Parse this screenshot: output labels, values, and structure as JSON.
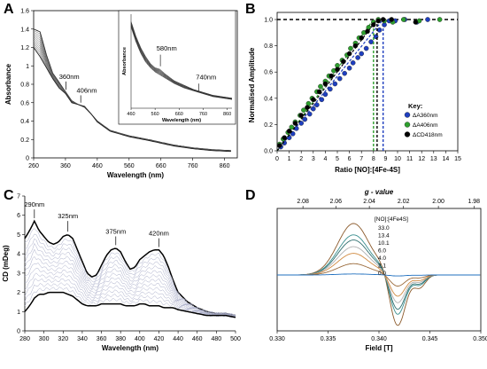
{
  "panels": {
    "A": {
      "letter": "A",
      "chart_data": {
        "type": "line",
        "title": "",
        "xlabel": "Wavelength (nm)",
        "ylabel": "Absorbance",
        "xlim": [
          260,
          900
        ],
        "ylim": [
          0,
          1.6
        ],
        "xticks": [
          "260",
          "360",
          "460",
          "560",
          "660",
          "760",
          "860"
        ],
        "yticks": [
          "0",
          "0.2",
          "0.4",
          "0.6",
          "0.8",
          "1",
          "1.2",
          "1.4",
          "1.6"
        ],
        "annotations": [
          "360nm",
          "406nm"
        ],
        "series_first": {
          "x": [
            260,
            280,
            300,
            320,
            340,
            360,
            380,
            400,
            420,
            440,
            460,
            500,
            560,
            620,
            660,
            700,
            760,
            820,
            880
          ],
          "y": [
            1.4,
            1.37,
            1.12,
            0.92,
            0.82,
            0.72,
            0.62,
            0.58,
            0.55,
            0.48,
            0.4,
            0.3,
            0.24,
            0.2,
            0.17,
            0.14,
            0.11,
            0.09,
            0.08
          ]
        },
        "series_last": {
          "x": [
            260,
            280,
            300,
            320,
            340,
            360,
            380,
            400,
            420,
            440,
            460,
            500,
            560,
            620,
            660,
            700,
            760,
            820,
            880
          ],
          "y": [
            1.2,
            1.1,
            0.98,
            0.86,
            0.76,
            0.7,
            0.6,
            0.58,
            0.56,
            0.48,
            0.39,
            0.29,
            0.23,
            0.19,
            0.16,
            0.13,
            0.1,
            0.08,
            0.07
          ]
        },
        "trace_count": 13
      },
      "inset": {
        "chart_data": {
          "type": "line",
          "xlabel": "Wavelength (nm)",
          "ylabel": "Absorbance",
          "xlim": [
            460,
            880
          ],
          "xticks": [
            "460",
            "560",
            "660",
            "760",
            "860"
          ],
          "annotations": [
            "580nm",
            "740nm"
          ],
          "series_first": {
            "x": [
              460,
              480,
              500,
              520,
              540,
              560,
              580,
              600,
              640,
              680,
              720,
              760,
              800,
              840,
              880
            ],
            "y": [
              0.6,
              0.5,
              0.42,
              0.36,
              0.31,
              0.28,
              0.27,
              0.24,
              0.19,
              0.16,
              0.13,
              0.11,
              0.09,
              0.08,
              0.07
            ]
          },
          "series_last": {
            "x": [
              460,
              480,
              500,
              520,
              540,
              560,
              580,
              600,
              640,
              680,
              720,
              760,
              800,
              840,
              880
            ],
            "y": [
              0.56,
              0.46,
              0.38,
              0.32,
              0.28,
              0.25,
              0.23,
              0.21,
              0.17,
              0.14,
              0.12,
              0.1,
              0.08,
              0.07,
              0.06
            ]
          }
        }
      }
    },
    "B": {
      "letter": "B",
      "chart_data": {
        "type": "scatter",
        "xlabel": "Ratio [NO]:[4Fe-4S]",
        "ylabel": "Normalised Amplitude",
        "xlim": [
          0,
          15
        ],
        "ylim": [
          0,
          1.0
        ],
        "xticks": [
          "0",
          "1",
          "2",
          "3",
          "4",
          "5",
          "6",
          "7",
          "8",
          "9",
          "10",
          "11",
          "12",
          "13",
          "14",
          "15"
        ],
        "yticks": [
          "0.0",
          "0.2",
          "0.4",
          "0.6",
          "0.8",
          "1.0"
        ],
        "legend_title": "Key:",
        "legend_position": "right",
        "series": [
          {
            "name": "ΔA360nm",
            "color": "#1f3fbf",
            "endpoint": 8.8,
            "x": [
              0.3,
              0.6,
              1.0,
              1.3,
              1.6,
              2.0,
              2.3,
              2.7,
              3.0,
              3.3,
              3.7,
              4.0,
              4.4,
              4.8,
              5.2,
              5.6,
              6.0,
              6.3,
              6.7,
              7.0,
              7.4,
              7.8,
              8.2,
              8.5,
              8.9,
              9.3,
              9.8,
              10.6,
              11.6,
              12.5
            ],
            "y": [
              0.03,
              0.06,
              0.1,
              0.13,
              0.17,
              0.21,
              0.24,
              0.28,
              0.32,
              0.35,
              0.39,
              0.43,
              0.47,
              0.51,
              0.55,
              0.59,
              0.63,
              0.67,
              0.71,
              0.74,
              0.78,
              0.83,
              0.87,
              0.92,
              0.96,
              0.99,
              0.99,
              1.0,
              0.98,
              1.0
            ]
          },
          {
            "name": "ΔA406nm",
            "color": "#2ea02e",
            "endpoint": 8.0,
            "x": [
              0.2,
              0.5,
              0.9,
              1.2,
              1.5,
              1.9,
              2.2,
              2.6,
              2.9,
              3.3,
              3.6,
              4.0,
              4.3,
              4.7,
              5.0,
              5.4,
              5.8,
              6.1,
              6.5,
              6.8,
              7.2,
              7.6,
              8.0,
              8.4,
              8.9,
              9.6,
              10.5,
              11.8,
              13.5
            ],
            "y": [
              0.05,
              0.09,
              0.14,
              0.18,
              0.22,
              0.27,
              0.31,
              0.36,
              0.4,
              0.45,
              0.49,
              0.53,
              0.57,
              0.61,
              0.65,
              0.69,
              0.73,
              0.78,
              0.82,
              0.86,
              0.9,
              0.94,
              0.98,
              1.0,
              0.99,
              0.98,
              1.0,
              0.99,
              1.0
            ]
          },
          {
            "name": "ΔCD418nm",
            "color": "#000000",
            "endpoint": 8.3,
            "x": [
              0.2,
              0.6,
              1.0,
              1.5,
              2.0,
              2.5,
              3.0,
              3.5,
              4.0,
              4.5,
              5.0,
              5.5,
              6.0,
              6.5,
              7.0,
              7.5,
              8.0,
              8.4,
              8.8,
              9.5,
              11.5
            ],
            "y": [
              0.04,
              0.1,
              0.15,
              0.21,
              0.27,
              0.33,
              0.39,
              0.45,
              0.51,
              0.57,
              0.62,
              0.68,
              0.74,
              0.8,
              0.86,
              0.91,
              0.96,
              0.99,
              1.0,
              1.0,
              0.98
            ]
          }
        ]
      }
    },
    "C": {
      "letter": "C",
      "chart_data": {
        "type": "line",
        "xlabel": "Wavelength (nm)",
        "ylabel": "CD (mDeg)",
        "xlim": [
          280,
          500
        ],
        "ylim": [
          0,
          7
        ],
        "xticks": [
          "280",
          "300",
          "320",
          "340",
          "360",
          "380",
          "400",
          "420",
          "440",
          "460",
          "480",
          "500"
        ],
        "yticks": [
          "0",
          "1",
          "2",
          "3",
          "4",
          "5",
          "6",
          "7"
        ],
        "annotations": [
          "290nm",
          "325nm",
          "375nm",
          "420nm"
        ],
        "series_first": {
          "x": [
            280,
            285,
            290,
            295,
            300,
            305,
            310,
            315,
            320,
            325,
            330,
            335,
            340,
            345,
            350,
            355,
            360,
            365,
            370,
            375,
            380,
            385,
            390,
            395,
            400,
            405,
            410,
            415,
            420,
            425,
            430,
            435,
            440,
            450,
            460,
            470,
            480,
            490,
            500
          ],
          "y": [
            4.8,
            5.2,
            5.7,
            5.2,
            4.9,
            4.6,
            4.5,
            4.6,
            4.9,
            5.0,
            4.8,
            4.2,
            3.6,
            3.0,
            2.8,
            2.9,
            3.4,
            3.9,
            4.2,
            4.3,
            4.1,
            3.6,
            3.2,
            3.3,
            3.7,
            3.9,
            4.1,
            4.2,
            4.2,
            3.9,
            3.3,
            2.6,
            2.0,
            1.5,
            1.2,
            1.0,
            0.9,
            0.9,
            0.8
          ]
        },
        "series_last": {
          "x": [
            280,
            285,
            290,
            295,
            300,
            305,
            310,
            315,
            320,
            325,
            330,
            335,
            340,
            345,
            350,
            355,
            360,
            365,
            370,
            375,
            380,
            385,
            390,
            395,
            400,
            405,
            410,
            415,
            420,
            425,
            430,
            435,
            440,
            450,
            460,
            470,
            480,
            490,
            500
          ],
          "y": [
            1.0,
            1.3,
            1.7,
            1.9,
            1.9,
            2.0,
            2.0,
            2.0,
            2.0,
            1.9,
            1.8,
            1.6,
            1.4,
            1.3,
            1.3,
            1.3,
            1.4,
            1.4,
            1.4,
            1.4,
            1.4,
            1.3,
            1.3,
            1.3,
            1.4,
            1.4,
            1.3,
            1.3,
            1.3,
            1.2,
            1.2,
            1.2,
            1.1,
            1.0,
            0.9,
            0.8,
            0.8,
            0.8,
            0.7
          ]
        },
        "trace_count": 14
      }
    },
    "D": {
      "letter": "D",
      "chart_data": {
        "type": "line",
        "xlabel": "Field [T]",
        "top_axis_label": "g - value",
        "xlim": [
          0.33,
          0.35
        ],
        "xticks": [
          "0.330",
          "0.335",
          "0.340",
          "0.345",
          "0.350"
        ],
        "top_ticks": [
          "2.08",
          "2.06",
          "2.04",
          "2.02",
          "2.00",
          "1.98"
        ],
        "legend_title": "[NO]:[4Fe4S]",
        "series": [
          {
            "name": "33.0",
            "color": "#8b5a2b",
            "amp": 1.0
          },
          {
            "name": "13.4",
            "color": "#3a8f8f",
            "amp": 0.78
          },
          {
            "name": "10.1",
            "color": "#2f6f6f",
            "amp": 0.68
          },
          {
            "name": "6.0",
            "color": "#b0b0b0",
            "amp": 0.55
          },
          {
            "name": "4.0",
            "color": "#d08a40",
            "amp": 0.42
          },
          {
            "name": "2.1",
            "color": "#9a6a3a",
            "amp": 0.22
          },
          {
            "name": "0.0",
            "color": "#1f6fbf",
            "amp": 0.02
          }
        ]
      }
    }
  }
}
